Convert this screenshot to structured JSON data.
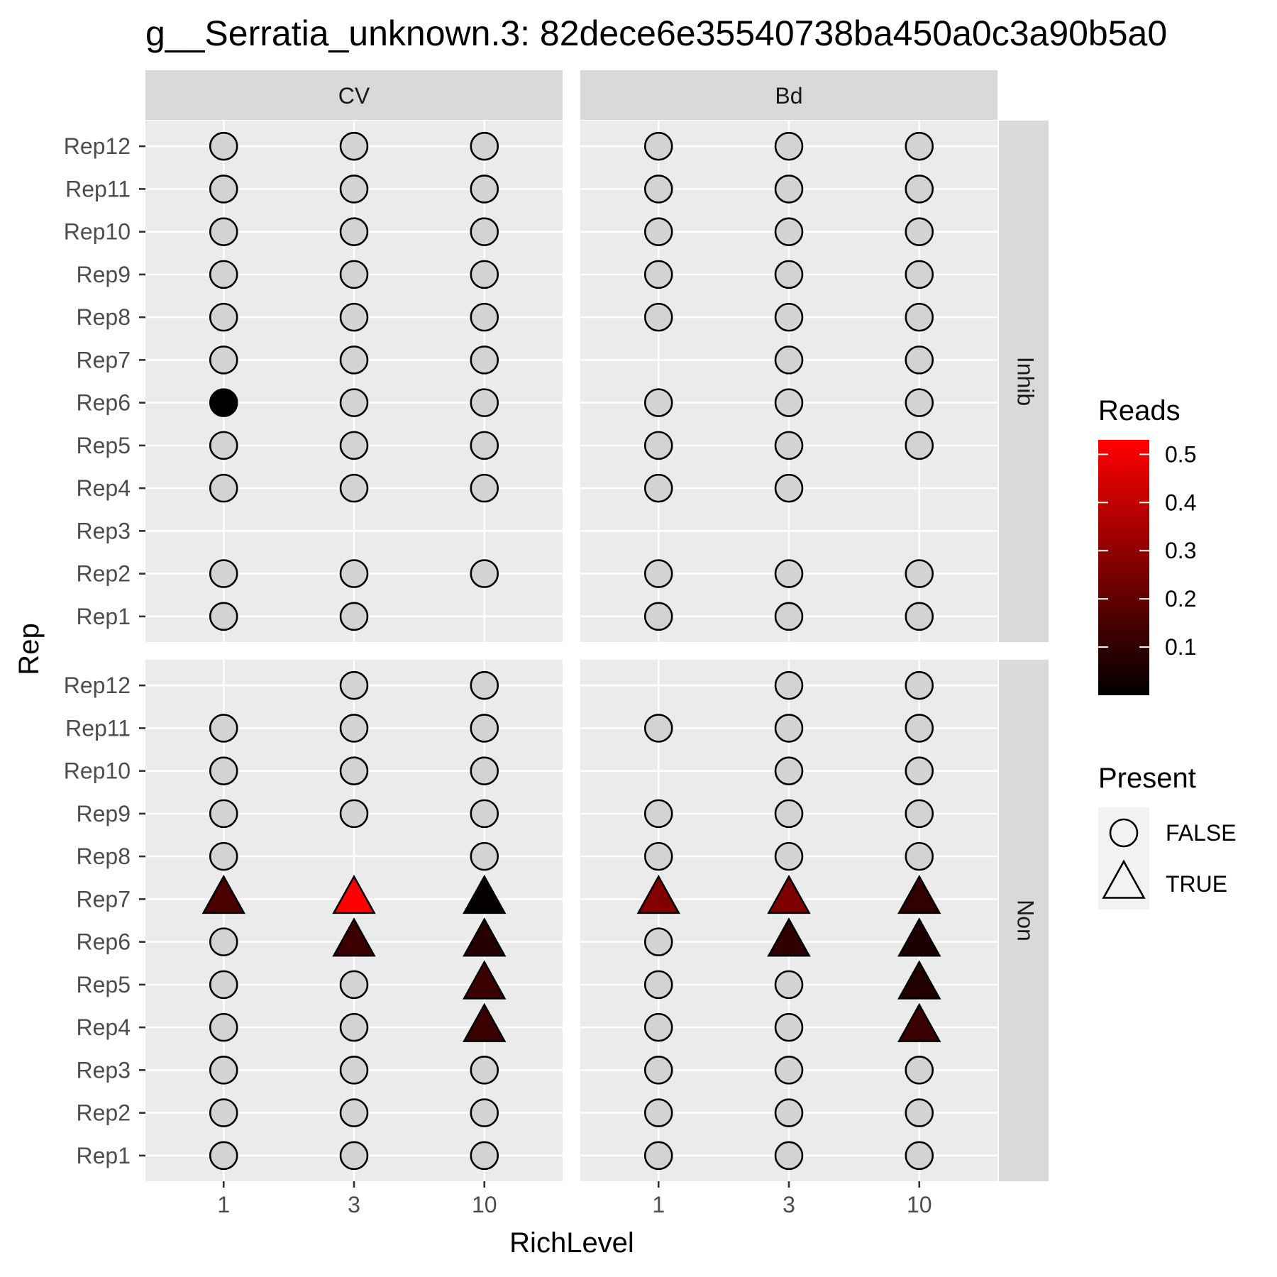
{
  "chart_data": {
    "type": "scatter",
    "title": "g__Serratia_unknown.3: 82dece6e35540738ba450a0c3a90b5a0",
    "xlabel": "RichLevel",
    "ylabel": "Rep",
    "x_categories": [
      "1",
      "3",
      "10"
    ],
    "y_categories": [
      "Rep1",
      "Rep2",
      "Rep3",
      "Rep4",
      "Rep5",
      "Rep6",
      "Rep7",
      "Rep8",
      "Rep9",
      "Rep10",
      "Rep11",
      "Rep12"
    ],
    "facet_columns": [
      "CV",
      "Bd"
    ],
    "facet_rows": [
      "Inhib",
      "Non"
    ],
    "grid": true,
    "false_fill": "#d3d3d3",
    "color_scale": {
      "title": "Reads",
      "low": "#000000",
      "high": "#ff0000",
      "min": 0.0,
      "max": 0.53,
      "ticks": [
        "0.1",
        "0.2",
        "0.3",
        "0.4",
        "0.5"
      ]
    },
    "shape_legend": {
      "title": "Present",
      "entries": [
        {
          "label": "FALSE",
          "shape": "circle"
        },
        {
          "label": "TRUE",
          "shape": "triangle"
        }
      ]
    },
    "panels": [
      {
        "col": "CV",
        "row": "Inhib",
        "points": [
          {
            "x": "1",
            "y": "Rep12",
            "present": false
          },
          {
            "x": "1",
            "y": "Rep11",
            "present": false
          },
          {
            "x": "1",
            "y": "Rep10",
            "present": false
          },
          {
            "x": "1",
            "y": "Rep9",
            "present": false
          },
          {
            "x": "1",
            "y": "Rep8",
            "present": false
          },
          {
            "x": "1",
            "y": "Rep7",
            "present": false
          },
          {
            "x": "1",
            "y": "Rep6",
            "present": false,
            "reads": 0.0
          },
          {
            "x": "1",
            "y": "Rep5",
            "present": false
          },
          {
            "x": "1",
            "y": "Rep4",
            "present": false
          },
          {
            "x": "1",
            "y": "Rep2",
            "present": false
          },
          {
            "x": "1",
            "y": "Rep1",
            "present": false
          },
          {
            "x": "3",
            "y": "Rep12",
            "present": false
          },
          {
            "x": "3",
            "y": "Rep11",
            "present": false
          },
          {
            "x": "3",
            "y": "Rep10",
            "present": false
          },
          {
            "x": "3",
            "y": "Rep9",
            "present": false
          },
          {
            "x": "3",
            "y": "Rep8",
            "present": false
          },
          {
            "x": "3",
            "y": "Rep7",
            "present": false
          },
          {
            "x": "3",
            "y": "Rep6",
            "present": false
          },
          {
            "x": "3",
            "y": "Rep5",
            "present": false
          },
          {
            "x": "3",
            "y": "Rep4",
            "present": false
          },
          {
            "x": "3",
            "y": "Rep2",
            "present": false
          },
          {
            "x": "3",
            "y": "Rep1",
            "present": false
          },
          {
            "x": "10",
            "y": "Rep12",
            "present": false
          },
          {
            "x": "10",
            "y": "Rep11",
            "present": false
          },
          {
            "x": "10",
            "y": "Rep10",
            "present": false
          },
          {
            "x": "10",
            "y": "Rep9",
            "present": false
          },
          {
            "x": "10",
            "y": "Rep8",
            "present": false
          },
          {
            "x": "10",
            "y": "Rep7",
            "present": false
          },
          {
            "x": "10",
            "y": "Rep6",
            "present": false
          },
          {
            "x": "10",
            "y": "Rep5",
            "present": false
          },
          {
            "x": "10",
            "y": "Rep4",
            "present": false
          },
          {
            "x": "10",
            "y": "Rep2",
            "present": false
          }
        ]
      },
      {
        "col": "Bd",
        "row": "Inhib",
        "points": [
          {
            "x": "1",
            "y": "Rep12",
            "present": false
          },
          {
            "x": "1",
            "y": "Rep11",
            "present": false
          },
          {
            "x": "1",
            "y": "Rep10",
            "present": false
          },
          {
            "x": "1",
            "y": "Rep9",
            "present": false
          },
          {
            "x": "1",
            "y": "Rep8",
            "present": false
          },
          {
            "x": "1",
            "y": "Rep6",
            "present": false
          },
          {
            "x": "1",
            "y": "Rep5",
            "present": false
          },
          {
            "x": "1",
            "y": "Rep4",
            "present": false
          },
          {
            "x": "1",
            "y": "Rep2",
            "present": false
          },
          {
            "x": "1",
            "y": "Rep1",
            "present": false
          },
          {
            "x": "3",
            "y": "Rep12",
            "present": false
          },
          {
            "x": "3",
            "y": "Rep11",
            "present": false
          },
          {
            "x": "3",
            "y": "Rep10",
            "present": false
          },
          {
            "x": "3",
            "y": "Rep9",
            "present": false
          },
          {
            "x": "3",
            "y": "Rep8",
            "present": false
          },
          {
            "x": "3",
            "y": "Rep7",
            "present": false
          },
          {
            "x": "3",
            "y": "Rep6",
            "present": false
          },
          {
            "x": "3",
            "y": "Rep5",
            "present": false
          },
          {
            "x": "3",
            "y": "Rep4",
            "present": false
          },
          {
            "x": "3",
            "y": "Rep2",
            "present": false
          },
          {
            "x": "3",
            "y": "Rep1",
            "present": false
          },
          {
            "x": "10",
            "y": "Rep12",
            "present": false
          },
          {
            "x": "10",
            "y": "Rep11",
            "present": false
          },
          {
            "x": "10",
            "y": "Rep10",
            "present": false
          },
          {
            "x": "10",
            "y": "Rep9",
            "present": false
          },
          {
            "x": "10",
            "y": "Rep8",
            "present": false
          },
          {
            "x": "10",
            "y": "Rep7",
            "present": false
          },
          {
            "x": "10",
            "y": "Rep6",
            "present": false
          },
          {
            "x": "10",
            "y": "Rep5",
            "present": false
          },
          {
            "x": "10",
            "y": "Rep2",
            "present": false
          },
          {
            "x": "10",
            "y": "Rep1",
            "present": false
          }
        ]
      },
      {
        "col": "CV",
        "row": "Non",
        "points": [
          {
            "x": "1",
            "y": "Rep11",
            "present": false
          },
          {
            "x": "1",
            "y": "Rep10",
            "present": false
          },
          {
            "x": "1",
            "y": "Rep9",
            "present": false
          },
          {
            "x": "1",
            "y": "Rep8",
            "present": false
          },
          {
            "x": "1",
            "y": "Rep7",
            "present": true,
            "reads": 0.15
          },
          {
            "x": "1",
            "y": "Rep6",
            "present": false
          },
          {
            "x": "1",
            "y": "Rep5",
            "present": false
          },
          {
            "x": "1",
            "y": "Rep4",
            "present": false
          },
          {
            "x": "1",
            "y": "Rep3",
            "present": false
          },
          {
            "x": "1",
            "y": "Rep2",
            "present": false
          },
          {
            "x": "1",
            "y": "Rep1",
            "present": false
          },
          {
            "x": "3",
            "y": "Rep12",
            "present": false
          },
          {
            "x": "3",
            "y": "Rep11",
            "present": false
          },
          {
            "x": "3",
            "y": "Rep10",
            "present": false
          },
          {
            "x": "3",
            "y": "Rep9",
            "present": false
          },
          {
            "x": "3",
            "y": "Rep7",
            "present": true,
            "reads": 0.53
          },
          {
            "x": "3",
            "y": "Rep6",
            "present": true,
            "reads": 0.12
          },
          {
            "x": "3",
            "y": "Rep5",
            "present": false
          },
          {
            "x": "3",
            "y": "Rep4",
            "present": false
          },
          {
            "x": "3",
            "y": "Rep3",
            "present": false
          },
          {
            "x": "3",
            "y": "Rep2",
            "present": false
          },
          {
            "x": "3",
            "y": "Rep1",
            "present": false
          },
          {
            "x": "10",
            "y": "Rep12",
            "present": false
          },
          {
            "x": "10",
            "y": "Rep11",
            "present": false
          },
          {
            "x": "10",
            "y": "Rep10",
            "present": false
          },
          {
            "x": "10",
            "y": "Rep9",
            "present": false
          },
          {
            "x": "10",
            "y": "Rep8",
            "present": false
          },
          {
            "x": "10",
            "y": "Rep7",
            "present": true,
            "reads": 0.01
          },
          {
            "x": "10",
            "y": "Rep6",
            "present": true,
            "reads": 0.08
          },
          {
            "x": "10",
            "y": "Rep5",
            "present": true,
            "reads": 0.12
          },
          {
            "x": "10",
            "y": "Rep4",
            "present": true,
            "reads": 0.12
          },
          {
            "x": "10",
            "y": "Rep3",
            "present": false
          },
          {
            "x": "10",
            "y": "Rep2",
            "present": false
          },
          {
            "x": "10",
            "y": "Rep1",
            "present": false
          }
        ]
      },
      {
        "col": "Bd",
        "row": "Non",
        "points": [
          {
            "x": "1",
            "y": "Rep11",
            "present": false
          },
          {
            "x": "1",
            "y": "Rep9",
            "present": false
          },
          {
            "x": "1",
            "y": "Rep8",
            "present": false
          },
          {
            "x": "1",
            "y": "Rep7",
            "present": true,
            "reads": 0.27
          },
          {
            "x": "1",
            "y": "Rep6",
            "present": false
          },
          {
            "x": "1",
            "y": "Rep5",
            "present": false
          },
          {
            "x": "1",
            "y": "Rep4",
            "present": false
          },
          {
            "x": "1",
            "y": "Rep3",
            "present": false
          },
          {
            "x": "1",
            "y": "Rep2",
            "present": false
          },
          {
            "x": "1",
            "y": "Rep1",
            "present": false
          },
          {
            "x": "3",
            "y": "Rep12",
            "present": false
          },
          {
            "x": "3",
            "y": "Rep11",
            "present": false
          },
          {
            "x": "3",
            "y": "Rep10",
            "present": false
          },
          {
            "x": "3",
            "y": "Rep9",
            "present": false
          },
          {
            "x": "3",
            "y": "Rep8",
            "present": false
          },
          {
            "x": "3",
            "y": "Rep7",
            "present": true,
            "reads": 0.26
          },
          {
            "x": "3",
            "y": "Rep6",
            "present": true,
            "reads": 0.1
          },
          {
            "x": "3",
            "y": "Rep5",
            "present": false
          },
          {
            "x": "3",
            "y": "Rep4",
            "present": false
          },
          {
            "x": "3",
            "y": "Rep3",
            "present": false
          },
          {
            "x": "3",
            "y": "Rep2",
            "present": false
          },
          {
            "x": "3",
            "y": "Rep1",
            "present": false
          },
          {
            "x": "10",
            "y": "Rep12",
            "present": false
          },
          {
            "x": "10",
            "y": "Rep11",
            "present": false
          },
          {
            "x": "10",
            "y": "Rep10",
            "present": false
          },
          {
            "x": "10",
            "y": "Rep9",
            "present": false
          },
          {
            "x": "10",
            "y": "Rep8",
            "present": false
          },
          {
            "x": "10",
            "y": "Rep7",
            "present": true,
            "reads": 0.1
          },
          {
            "x": "10",
            "y": "Rep6",
            "present": true,
            "reads": 0.06
          },
          {
            "x": "10",
            "y": "Rep5",
            "present": true,
            "reads": 0.07
          },
          {
            "x": "10",
            "y": "Rep4",
            "present": true,
            "reads": 0.12
          },
          {
            "x": "10",
            "y": "Rep3",
            "present": false
          },
          {
            "x": "10",
            "y": "Rep2",
            "present": false
          },
          {
            "x": "10",
            "y": "Rep1",
            "present": false
          }
        ]
      }
    ]
  }
}
